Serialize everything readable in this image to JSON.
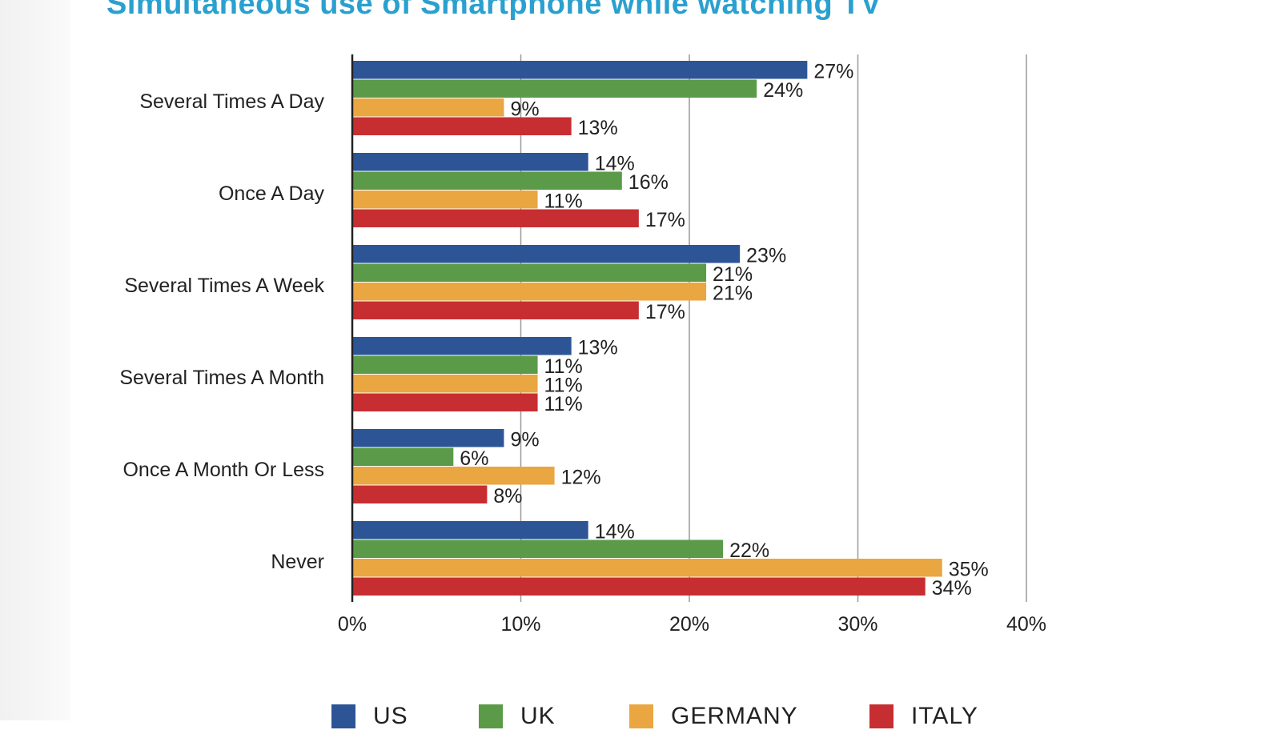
{
  "chart_data": {
    "type": "bar",
    "orientation": "horizontal",
    "title": "Simultaneous use of Smartphone while watching TV",
    "categories": [
      "Several Times A Day",
      "Once A Day",
      "Several Times A Week",
      "Several Times A Month",
      "Once A Month Or Less",
      "Never"
    ],
    "series": [
      {
        "name": "US",
        "color": "#2d5596",
        "values": [
          27,
          14,
          23,
          13,
          9,
          14
        ]
      },
      {
        "name": "UK",
        "color": "#5a9a48",
        "values": [
          24,
          16,
          21,
          11,
          6,
          22
        ]
      },
      {
        "name": "GERMANY",
        "color": "#e9a641",
        "values": [
          9,
          11,
          21,
          11,
          12,
          35
        ]
      },
      {
        "name": "ITALY",
        "color": "#c62e32",
        "values": [
          13,
          17,
          17,
          11,
          8,
          34
        ]
      }
    ],
    "value_suffix": "%",
    "xlim": [
      0,
      40
    ],
    "xticks": [
      0,
      10,
      20,
      30,
      40
    ],
    "xtick_labels": [
      "0%",
      "10%",
      "20%",
      "30%",
      "40%"
    ],
    "grid": true,
    "legend_position": "bottom"
  }
}
